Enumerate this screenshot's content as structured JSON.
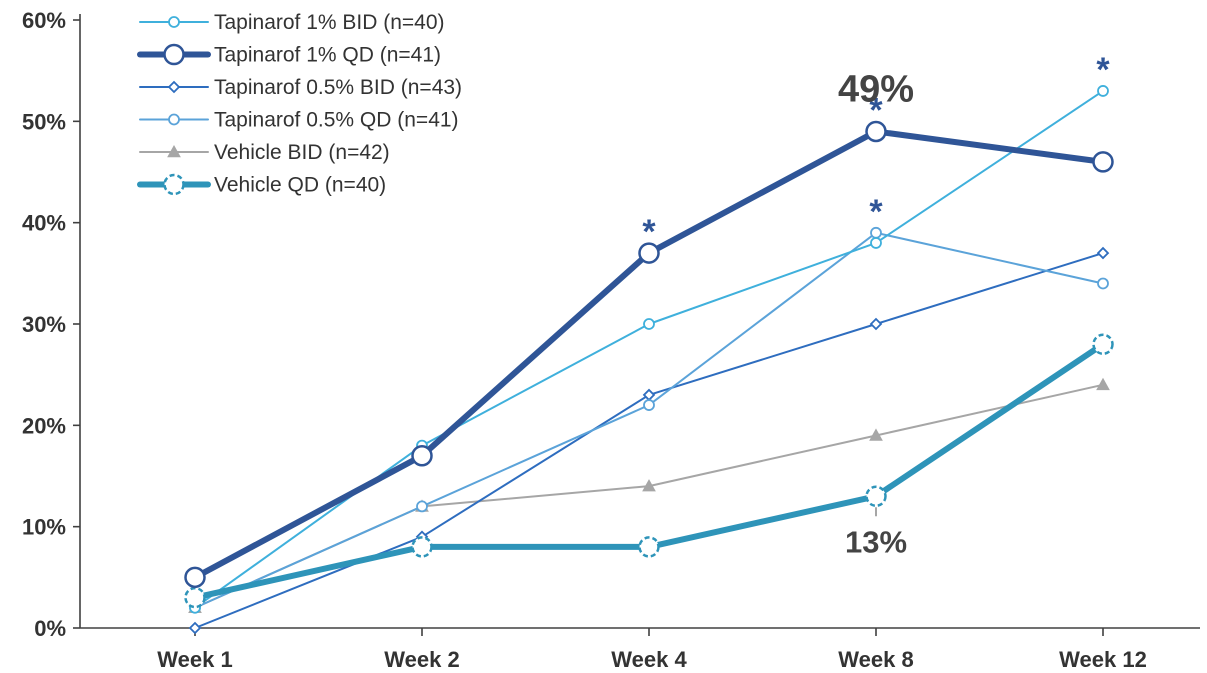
{
  "chart_data": {
    "type": "line",
    "categories": [
      "Week 1",
      "Week 2",
      "Week 4",
      "Week 8",
      "Week 12"
    ],
    "ylim": [
      0,
      60
    ],
    "yticks": [
      "0%",
      "10%",
      "20%",
      "30%",
      "40%",
      "50%",
      "60%"
    ],
    "grid": false,
    "legend_position": "top-left",
    "series": [
      {
        "name": "Tapinarof 1% BID (n=40)",
        "values": [
          2,
          18,
          30,
          38,
          53
        ],
        "color": "#3fb0dc",
        "marker": "circle-small",
        "weight": "thin",
        "dashed_marker": false
      },
      {
        "name": "Tapinarof 1% QD (n=41)",
        "values": [
          5,
          17,
          37,
          49,
          46
        ],
        "color": "#2f5597",
        "marker": "circle-large",
        "weight": "thick",
        "dashed_marker": false
      },
      {
        "name": "Tapinarof 0.5% BID (n=43)",
        "values": [
          0,
          9,
          23,
          30,
          37
        ],
        "color": "#2e6dbf",
        "marker": "diamond",
        "weight": "thin",
        "dashed_marker": false
      },
      {
        "name": "Tapinarof 0.5% QD (n=41)",
        "values": [
          2,
          12,
          22,
          39,
          34
        ],
        "color": "#5ba3d9",
        "marker": "circle-small",
        "weight": "thin",
        "dashed_marker": false
      },
      {
        "name": "Vehicle BID (n=42)",
        "values": [
          2,
          12,
          14,
          19,
          24
        ],
        "color": "#a6a6a6",
        "marker": "triangle",
        "weight": "thin",
        "dashed_marker": false
      },
      {
        "name": "Vehicle QD (n=40)",
        "values": [
          3,
          8,
          8,
          13,
          28
        ],
        "color": "#2e94b9",
        "marker": "circle-large",
        "weight": "thick",
        "dashed_marker": true
      }
    ],
    "annotations": [
      {
        "text": "49%",
        "x": "Week 8",
        "y": 49,
        "style": "large"
      },
      {
        "text": "13%",
        "x": "Week 8",
        "y": 13,
        "style": "medium"
      }
    ],
    "significance_marks": [
      {
        "text": "*",
        "x": "Week 4",
        "y": 37
      },
      {
        "text": "*",
        "x": "Week 8",
        "y": 49
      },
      {
        "text": "*",
        "x": "Week 8",
        "y": 39
      },
      {
        "text": "*",
        "x": "Week 12",
        "y": 53
      }
    ]
  }
}
